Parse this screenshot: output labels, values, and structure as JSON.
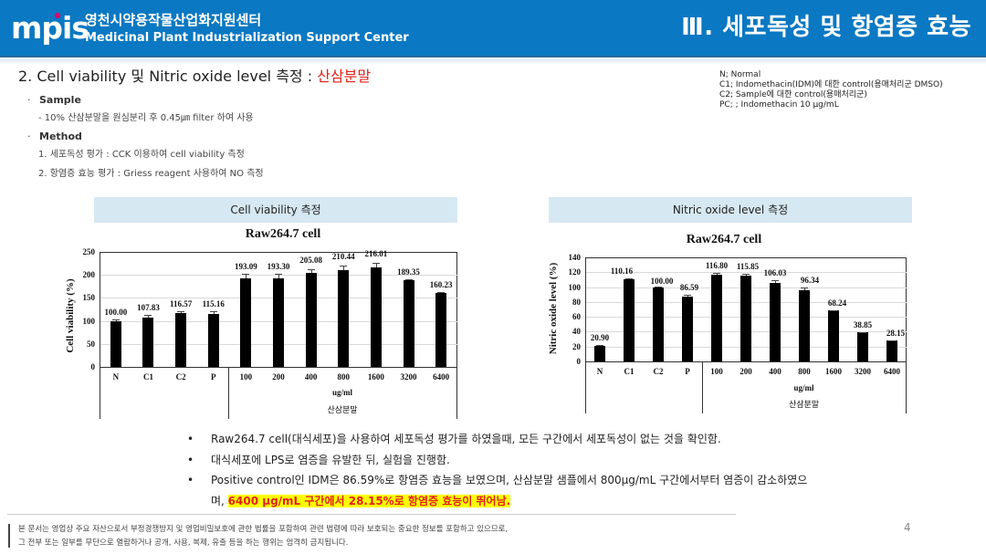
{
  "header": {
    "logo_text": "mpis",
    "org_name_ko": "영천시약용작물산업화지원센터",
    "org_name_en": "Medicinal Plant Industrialization Support Center",
    "section_title": "Ⅲ. 세포독성 및 항염증 효능",
    "brand_color": "#0a78c2",
    "logo_dot_color": "#e2006a"
  },
  "main": {
    "title_prefix": "2. Cell viability 및 Nitric oxide level 측정 : ",
    "title_accent": "산삼분말",
    "accent_color": "#e0201a",
    "sample_label": "Sample",
    "sample_desc": "- 10% 산삼분말을 원심분리 후 0.45㎛ filter 하여 사용",
    "method_label": "Method",
    "method_items": [
      "1. 세포독성 평가 : CCK 이용하여 cell viability 측정",
      "2. 항염증 효능 평가 : Griess reagent 사용하여 NO 측정"
    ]
  },
  "legend": [
    "N; Normal",
    "C1; Indomethacin(IDM)에 대한 control(용매처리군 DMSO)",
    "C2; Sample에 대한 control(용매처리군)",
    "PC; ; Indomethacin 10 μg/mL"
  ],
  "chart_headers": {
    "left": "Cell viability 측정",
    "right": "Nitric oxide level 측정"
  },
  "chart_data": [
    {
      "type": "bar",
      "title": "Raw264.7 cell",
      "xlabel": "ug/ml",
      "x_group_label": "산삼분말",
      "ylabel": "Cell viability (%)",
      "ylim": [
        0,
        250
      ],
      "yticks": [
        0,
        50,
        100,
        150,
        200,
        250
      ],
      "grid": true,
      "categories": [
        "N",
        "C1",
        "C2",
        "P",
        "100",
        "200",
        "400",
        "800",
        "1600",
        "3200",
        "6400"
      ],
      "values": [
        100.0,
        107.83,
        116.57,
        115.16,
        193.09,
        193.3,
        205.08,
        210.44,
        216.01,
        189.35,
        160.23
      ],
      "value_labels": [
        "100.00",
        "107.83",
        "116.57",
        "115.16",
        "193.09",
        "193.30",
        "205.08",
        "210.44",
        "216.01",
        "189.35",
        "160.23"
      ],
      "errors": [
        3,
        5,
        5,
        6,
        9,
        9,
        8,
        9,
        10,
        2,
        3
      ]
    },
    {
      "type": "bar",
      "title": "Raw264.7 cell",
      "xlabel": "ug/ml",
      "x_group_label": "산삼분말",
      "ylabel": "Nitric oxide level (%)",
      "ylim": [
        0,
        140
      ],
      "yticks": [
        0,
        20,
        40,
        60,
        80,
        100,
        120,
        140
      ],
      "grid": true,
      "categories": [
        "N",
        "C1",
        "C2",
        "P",
        "100",
        "200",
        "400",
        "800",
        "1600",
        "3200",
        "6400"
      ],
      "values": [
        20.9,
        110.16,
        100.0,
        86.59,
        116.8,
        115.85,
        106.03,
        96.34,
        68.24,
        38.85,
        28.15
      ],
      "value_labels": [
        "20.90",
        "110.16",
        "100.00",
        "86.59",
        "116.80",
        "115.85",
        "106.03",
        "96.34",
        "68.24",
        "38.85",
        "28.15"
      ],
      "errors": [
        1,
        1,
        0.5,
        3,
        2,
        2,
        3,
        3,
        1,
        0.5,
        0.5
      ]
    }
  ],
  "summary": {
    "bullet": "•",
    "items": [
      "Raw264.7 cell(대식세포)을 사용하여 세포독성 평가를 하였을때, 모든 구간에서 세포독성이 없는 것을 확인함.",
      "대식세포에 LPS로 염증을 유발한 뒤, 실험을 진행함.",
      "Positive control인 IDM은 86.59%로 항염증 효능을 보였으며, 산삼분말 샘플에서 800μg/mL 구간에서부터 염증이 감소하였으"
    ],
    "continuation_prefix": "며, ",
    "highlight": "6400 μg/mL 구간에서 28.15%로 항염증 효능이 뛰어남.",
    "highlight_bg": "#ffff00"
  },
  "footer": {
    "notice_line1": "본 문서는 영업상 주요 자산으로서 부정경쟁방지 및 영업비밀보호에 관한 법률을 포함하여 관련 법령에 따라 보호되는 중요한 정보를 포함하고 있으므로,",
    "notice_line2": "그 전부 또는 일부를 무단으로 열람하거나 공개, 사용, 복제, 유출 등을 하는 행위는 엄격히 금지됩니다.",
    "page_number": "4"
  }
}
